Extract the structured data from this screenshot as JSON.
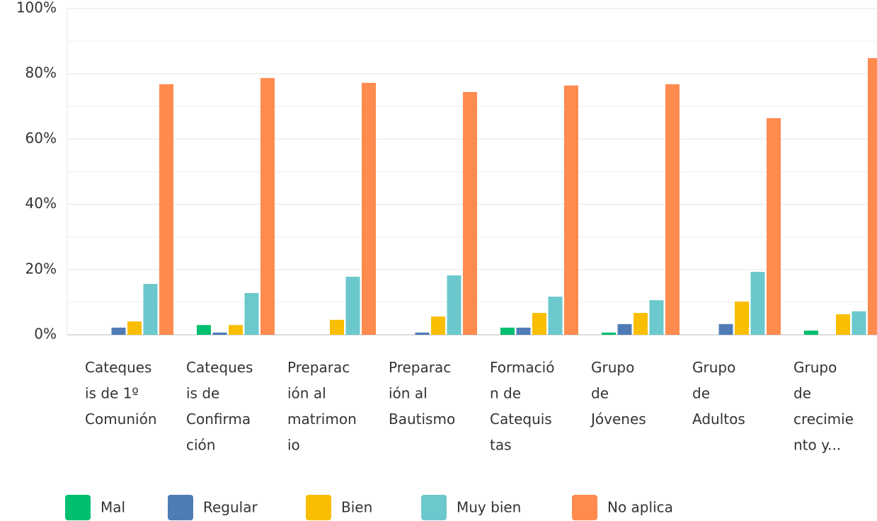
{
  "chart_data": {
    "type": "bar",
    "categories": [
      "Cateques\nis de 1º\nComunión",
      "Cateques\nis de\nConfirma\nción",
      "Preparac\nión al\nmatrimon\nio",
      "Preparac\nión al\nBautismo",
      "Formació\nn de\nCatequis\ntas",
      "Grupo\nde\nJóvenes",
      "Grupo\nde\nAdultos",
      "Grupo\nde\ncrecimie\nnto y..."
    ],
    "series": [
      {
        "name": "Mal",
        "color": "#00bf6f",
        "values": [
          0,
          3.0,
          0,
          0,
          2.2,
          0.7,
          0,
          1.3
        ]
      },
      {
        "name": "Regular",
        "color": "#507cb6",
        "values": [
          2.2,
          0.7,
          0,
          0.7,
          2.2,
          3.3,
          3.3,
          0
        ]
      },
      {
        "name": "Bien",
        "color": "#f9be00",
        "values": [
          4.1,
          3.0,
          4.6,
          5.6,
          6.7,
          6.7,
          10.2,
          6.3
        ]
      },
      {
        "name": "Muy bien",
        "color": "#6bc8cd",
        "values": [
          15.6,
          12.8,
          17.8,
          18.2,
          11.7,
          10.6,
          19.3,
          7.2
        ]
      },
      {
        "name": "No aplica",
        "color": "#ff8b4f",
        "values": [
          76.8,
          78.7,
          77.2,
          74.4,
          76.4,
          76.8,
          66.4,
          84.8
        ]
      }
    ],
    "ylim": [
      0,
      100
    ],
    "yticks": [
      {
        "value": 0,
        "label": "0%"
      },
      {
        "value": 20,
        "label": "20%"
      },
      {
        "value": 40,
        "label": "40%"
      },
      {
        "value": 60,
        "label": "60%"
      },
      {
        "value": 80,
        "label": "80%"
      },
      {
        "value": 100,
        "label": "100%"
      }
    ],
    "minor_yticks": [
      10,
      30,
      50,
      70,
      90
    ],
    "grid": true,
    "legend": "bottom"
  }
}
